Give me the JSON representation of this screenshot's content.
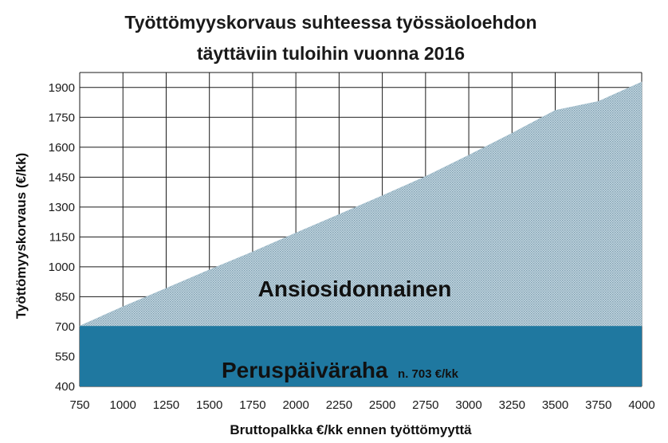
{
  "chart_data": {
    "type": "area",
    "title_lines": [
      "Työttömyyskorvaus suhteessa työssäoloehdon",
      "täyttäviin tuloihin vuonna 2016"
    ],
    "xlabel": "Bruttopalkka €/kk ennen työttömyyttä",
    "ylabel": "Työttömyyskorvaus (€/kk)",
    "xlim": [
      750,
      4000
    ],
    "ylim": [
      400,
      1975
    ],
    "x_ticks": [
      750,
      1000,
      1250,
      1500,
      1750,
      2000,
      2250,
      2500,
      2750,
      3000,
      3250,
      3500,
      3750,
      4000
    ],
    "y_ticks": [
      400,
      550,
      700,
      850,
      1000,
      1150,
      1300,
      1450,
      1600,
      1750,
      1900
    ],
    "grid": true,
    "legend": "none",
    "series": [
      {
        "name": "Peruspäiväraha",
        "annotation": "n. 703 €/kk",
        "color": "#1f78a0",
        "x": [
          750,
          4000
        ],
        "y": [
          703,
          703
        ]
      },
      {
        "name": "Ansiosidonnainen",
        "color": "#a9c3d0",
        "x": [
          750,
          1000,
          1250,
          1500,
          1750,
          2000,
          2250,
          2500,
          2750,
          3000,
          3250,
          3500,
          3750,
          4000
        ],
        "y": [
          703,
          800,
          892,
          985,
          1075,
          1170,
          1263,
          1357,
          1453,
          1560,
          1670,
          1785,
          1830,
          1927
        ]
      }
    ]
  }
}
